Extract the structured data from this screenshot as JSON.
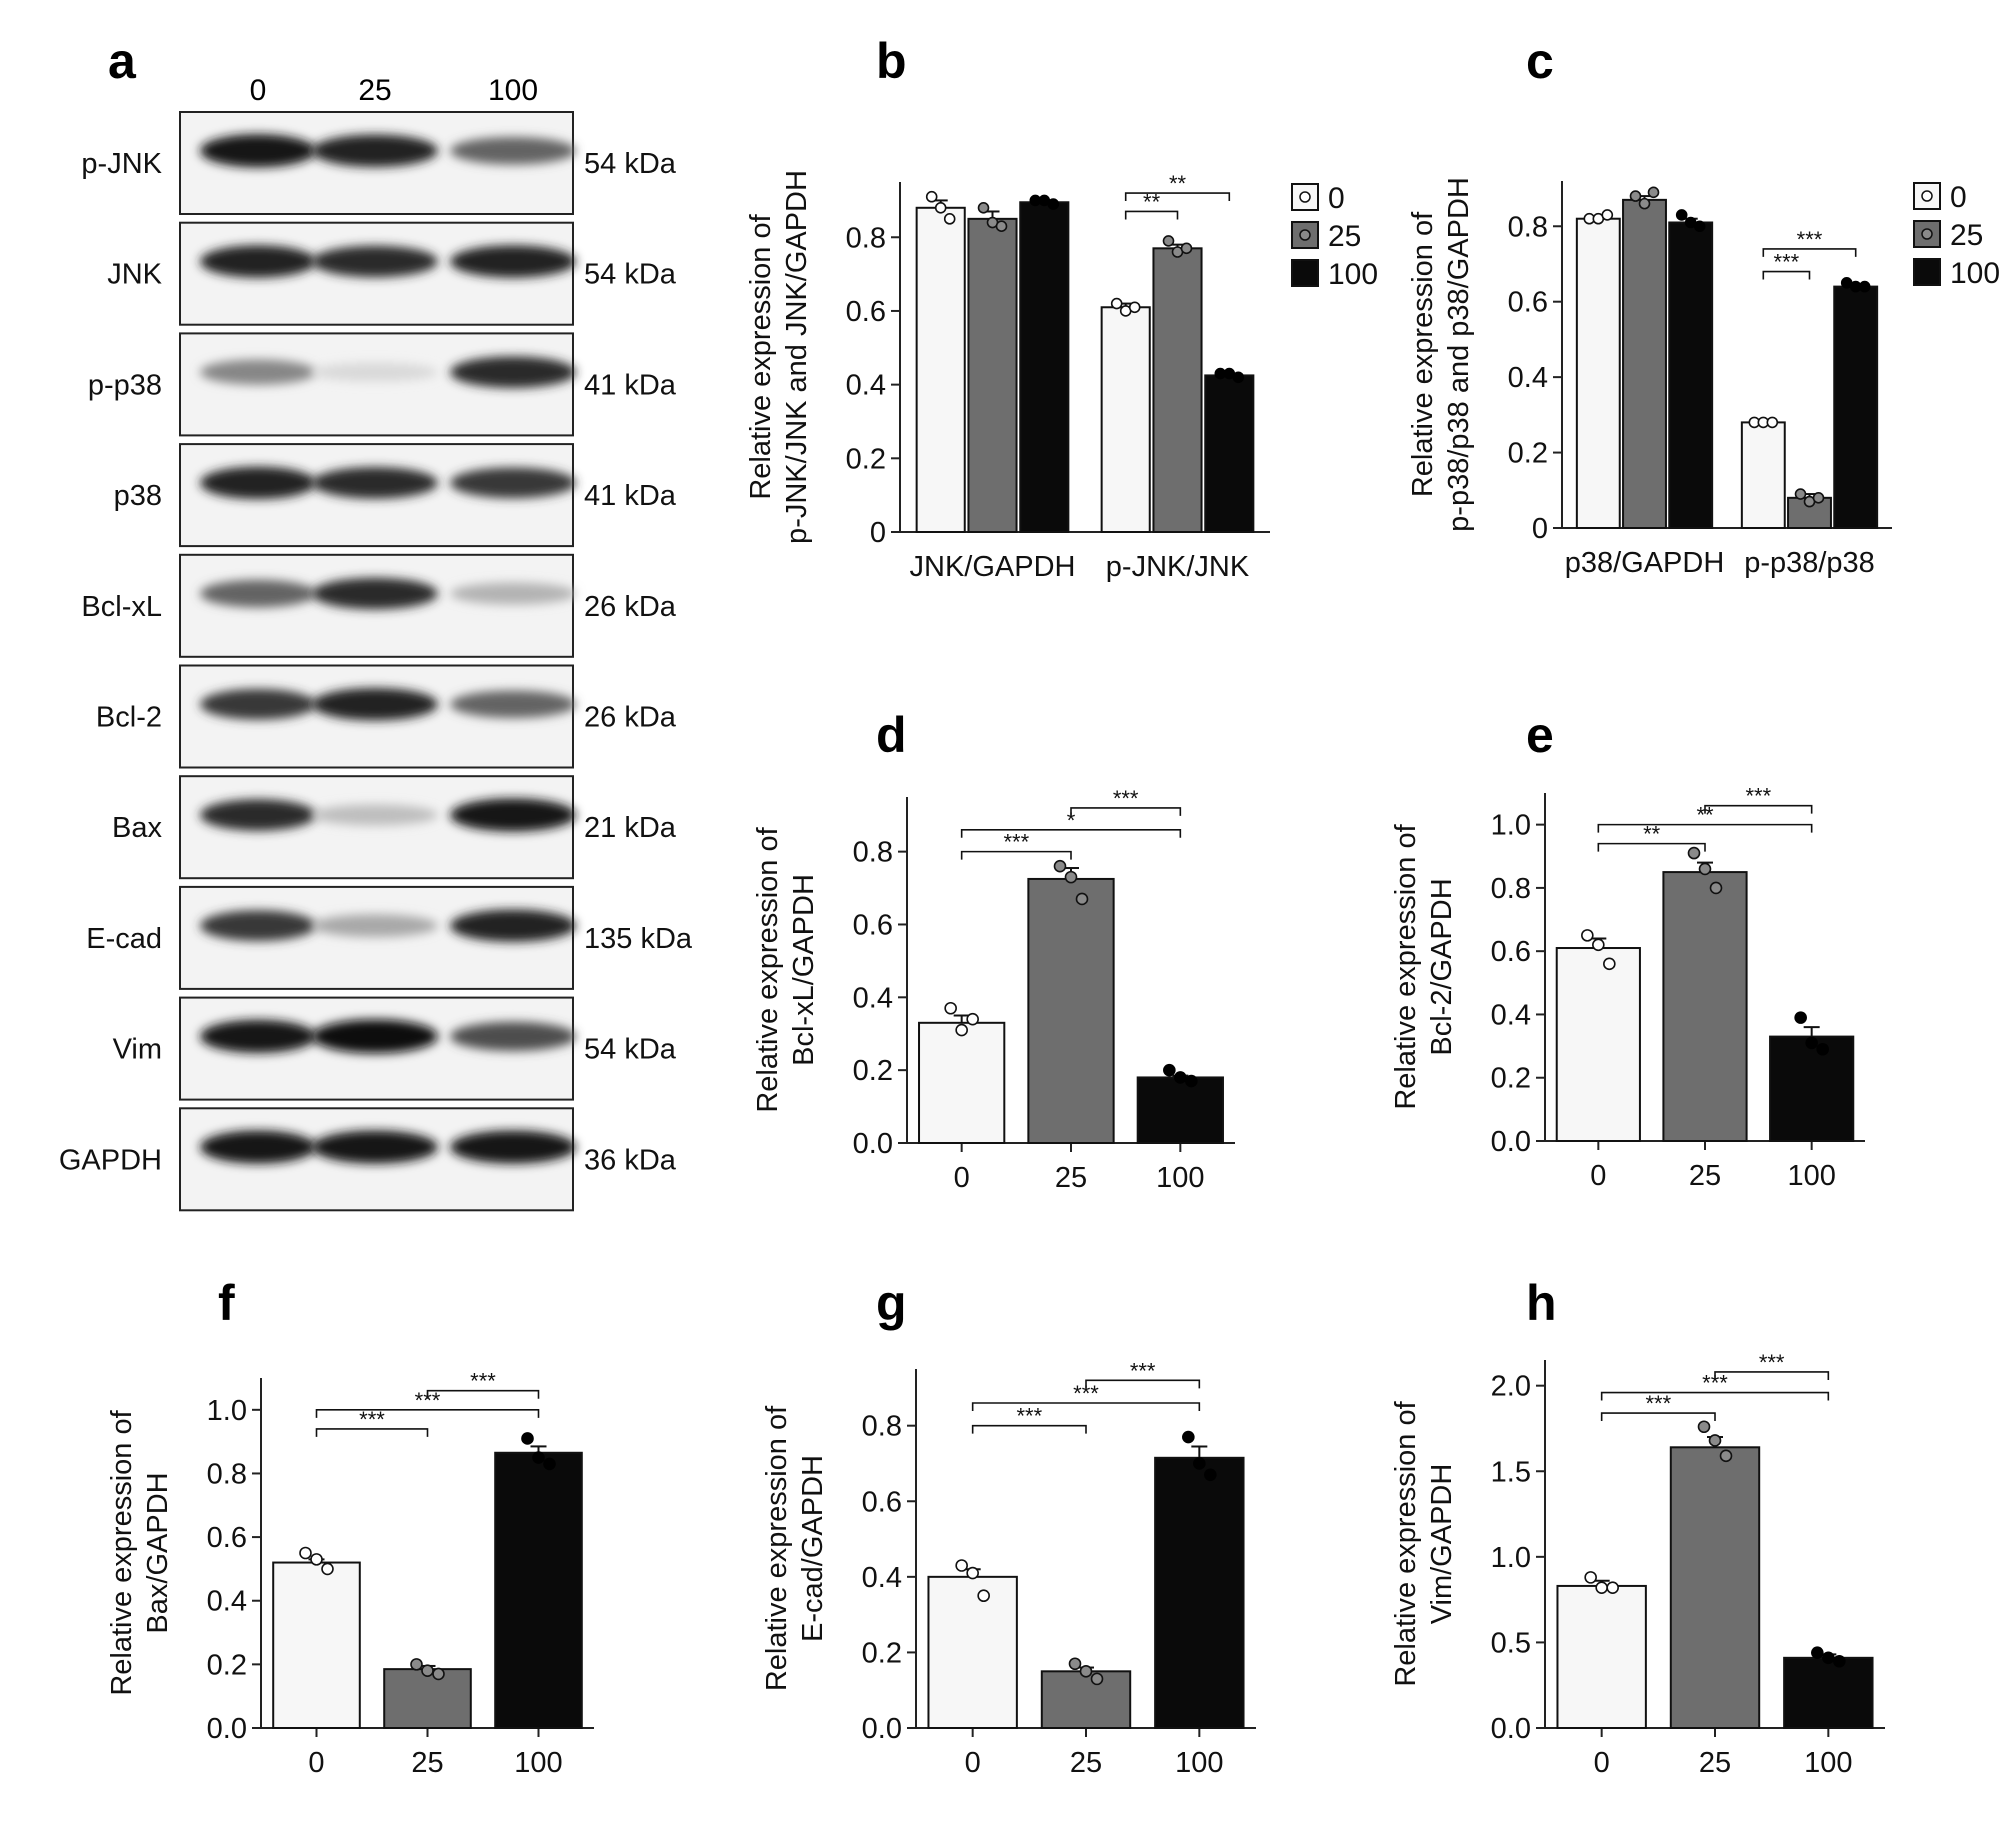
{
  "panel_letters": [
    "a",
    "b",
    "c",
    "d",
    "e",
    "f",
    "g",
    "h"
  ],
  "western_blot": {
    "lane_labels": [
      "0",
      "25",
      "100"
    ],
    "rows": [
      {
        "label": "p-JNK",
        "size": "54 kDa",
        "levels": [
          0.95,
          0.9,
          0.6
        ]
      },
      {
        "label": "JNK",
        "size": "54 kDa",
        "levels": [
          0.9,
          0.85,
          0.9
        ]
      },
      {
        "label": "p-p38",
        "size": "41 kDa",
        "levels": [
          0.45,
          0.08,
          0.85
        ]
      },
      {
        "label": "p38",
        "size": "41 kDa",
        "levels": [
          0.9,
          0.85,
          0.8
        ]
      },
      {
        "label": "Bcl-xL",
        "size": "26 kDa",
        "levels": [
          0.6,
          0.85,
          0.25
        ]
      },
      {
        "label": "Bcl-2",
        "size": "26 kDa",
        "levels": [
          0.8,
          0.9,
          0.6
        ]
      },
      {
        "label": "Bax",
        "size": "21 kDa",
        "levels": [
          0.85,
          0.2,
          0.95
        ]
      },
      {
        "label": "E-cad",
        "size": "135 kDa",
        "levels": [
          0.8,
          0.3,
          0.9
        ]
      },
      {
        "label": "Vim",
        "size": "54 kDa",
        "levels": [
          0.95,
          1.0,
          0.7
        ]
      },
      {
        "label": "GAPDH",
        "size": "36 kDa",
        "levels": [
          0.95,
          0.95,
          0.95
        ]
      }
    ]
  },
  "colors": {
    "dose_0": "#f7f7f7",
    "dose_25": "#6e6e6e",
    "dose_100": "#0a0a0a"
  },
  "chart_data": [
    {
      "panel": "b",
      "type": "bar",
      "ylabel": [
        "Relative expression of",
        "p-JNK/JNK and JNK/GAPDH"
      ],
      "categories": [
        "JNK/GAPDH",
        "p-JNK/JNK"
      ],
      "ylim": [
        0,
        0.95
      ],
      "yticks": [
        0,
        0.2,
        0.4,
        0.6,
        0.8
      ],
      "tick_labels": [
        "0",
        "0.2",
        "0.4",
        "0.6",
        "0.8"
      ],
      "legend": {
        "placement": "top-right",
        "entries": [
          "0",
          "25",
          "100"
        ]
      },
      "series": [
        {
          "name": "0",
          "values": [
            0.88,
            0.61
          ],
          "err": [
            0.02,
            0.01
          ],
          "points": [
            [
              0.91,
              0.88,
              0.85
            ],
            [
              0.62,
              0.6,
              0.61
            ]
          ]
        },
        {
          "name": "25",
          "values": [
            0.85,
            0.77
          ],
          "err": [
            0.02,
            0.01
          ],
          "points": [
            [
              0.88,
              0.84,
              0.83
            ],
            [
              0.79,
              0.76,
              0.77
            ]
          ]
        },
        {
          "name": "100",
          "values": [
            0.895,
            0.425
          ],
          "err": [
            0.005,
            0.004
          ],
          "points": [
            [
              0.9,
              0.9,
              0.89
            ],
            [
              0.43,
              0.43,
              0.42
            ]
          ]
        }
      ],
      "sig": [
        {
          "g": 1,
          "from": 0,
          "to": 1,
          "y": 0.87,
          "label": "**"
        },
        {
          "g": 1,
          "from": 0,
          "to": 2,
          "y": 0.92,
          "label": "**"
        }
      ]
    },
    {
      "panel": "c",
      "type": "bar",
      "ylabel": [
        "Relative expression of",
        "p-p38/p38 and p38/GAPDH"
      ],
      "categories": [
        "p38/GAPDH",
        "p-p38/p38"
      ],
      "ylim": [
        0,
        0.92
      ],
      "yticks": [
        0,
        0.2,
        0.4,
        0.6,
        0.8
      ],
      "tick_labels": [
        "0",
        "0.2",
        "0.4",
        "0.6",
        "0.8"
      ],
      "legend": {
        "placement": "top-right",
        "entries": [
          "0",
          "25",
          "100"
        ]
      },
      "series": [
        {
          "name": "0",
          "values": [
            0.82,
            0.28
          ],
          "err": [
            0.005,
            0.005
          ],
          "points": [
            [
              0.82,
              0.82,
              0.83
            ],
            [
              0.28,
              0.28,
              0.28
            ]
          ]
        },
        {
          "name": "25",
          "values": [
            0.87,
            0.08
          ],
          "err": [
            0.01,
            0.01
          ],
          "points": [
            [
              0.88,
              0.86,
              0.89
            ],
            [
              0.09,
              0.07,
              0.08
            ]
          ]
        },
        {
          "name": "100",
          "values": [
            0.81,
            0.64
          ],
          "err": [
            0.01,
            0.005
          ],
          "points": [
            [
              0.83,
              0.81,
              0.8
            ],
            [
              0.65,
              0.64,
              0.64
            ]
          ]
        }
      ],
      "sig": [
        {
          "g": 1,
          "from": 0,
          "to": 1,
          "y": 0.68,
          "label": "***"
        },
        {
          "g": 1,
          "from": 0,
          "to": 2,
          "y": 0.74,
          "label": "***"
        }
      ]
    },
    {
      "panel": "d",
      "type": "bar",
      "ylabel": [
        "Relative expression of",
        "Bcl-xL/GAPDH"
      ],
      "categories": [
        "0",
        "25",
        "100"
      ],
      "ylim": [
        0,
        0.95
      ],
      "yticks": [
        0,
        0.2,
        0.4,
        0.6,
        0.8
      ],
      "tick_labels": [
        "0.0",
        "0.2",
        "0.4",
        "0.6",
        "0.8"
      ],
      "values": [
        0.33,
        0.725,
        0.18
      ],
      "err": [
        0.02,
        0.03,
        0.005
      ],
      "points": [
        [
          0.37,
          0.31,
          0.34
        ],
        [
          0.76,
          0.73,
          0.67
        ],
        [
          0.2,
          0.18,
          0.17
        ]
      ],
      "sig": [
        {
          "from": 0,
          "to": 1,
          "y": 0.8,
          "label": "***"
        },
        {
          "from": 0,
          "to": 2,
          "y": 0.86,
          "label": "*"
        },
        {
          "from": 1,
          "to": 2,
          "y": 0.92,
          "label": "***"
        }
      ]
    },
    {
      "panel": "e",
      "type": "bar",
      "ylabel": [
        "Relative expression of",
        "Bcl-2/GAPDH"
      ],
      "categories": [
        "0",
        "25",
        "100"
      ],
      "ylim": [
        0,
        1.1
      ],
      "yticks": [
        0,
        0.2,
        0.4,
        0.6,
        0.8,
        1.0
      ],
      "tick_labels": [
        "0.0",
        "0.2",
        "0.4",
        "0.6",
        "0.8",
        "1.0"
      ],
      "values": [
        0.61,
        0.85,
        0.33
      ],
      "err": [
        0.03,
        0.03,
        0.03
      ],
      "points": [
        [
          0.65,
          0.62,
          0.56
        ],
        [
          0.91,
          0.86,
          0.8
        ],
        [
          0.39,
          0.31,
          0.29
        ]
      ],
      "sig": [
        {
          "from": 0,
          "to": 1,
          "y": 0.94,
          "label": "**"
        },
        {
          "from": 0,
          "to": 2,
          "y": 1.0,
          "label": "**"
        },
        {
          "from": 1,
          "to": 2,
          "y": 1.06,
          "label": "***"
        }
      ]
    },
    {
      "panel": "f",
      "type": "bar",
      "ylabel": [
        "Relative expression of",
        "Bax/GAPDH"
      ],
      "categories": [
        "0",
        "25",
        "100"
      ],
      "ylim": [
        0,
        1.1
      ],
      "yticks": [
        0,
        0.2,
        0.4,
        0.6,
        0.8,
        1.0
      ],
      "tick_labels": [
        "0.0",
        "0.2",
        "0.4",
        "0.6",
        "0.8",
        "1.0"
      ],
      "values": [
        0.52,
        0.185,
        0.865
      ],
      "err": [
        0.01,
        0.01,
        0.02
      ],
      "points": [
        [
          0.55,
          0.53,
          0.5
        ],
        [
          0.2,
          0.18,
          0.17
        ],
        [
          0.91,
          0.85,
          0.83
        ]
      ],
      "sig": [
        {
          "from": 0,
          "to": 1,
          "y": 0.94,
          "label": "***"
        },
        {
          "from": 0,
          "to": 2,
          "y": 1.0,
          "label": "***"
        },
        {
          "from": 1,
          "to": 2,
          "y": 1.06,
          "label": "***"
        }
      ]
    },
    {
      "panel": "g",
      "type": "bar",
      "ylabel": [
        "Relative expression of",
        "E-cad/GAPDH"
      ],
      "categories": [
        "0",
        "25",
        "100"
      ],
      "ylim": [
        0,
        0.95
      ],
      "yticks": [
        0,
        0.2,
        0.4,
        0.6,
        0.8
      ],
      "tick_labels": [
        "0.0",
        "0.2",
        "0.4",
        "0.6",
        "0.8"
      ],
      "values": [
        0.4,
        0.15,
        0.715
      ],
      "err": [
        0.02,
        0.01,
        0.03
      ],
      "points": [
        [
          0.43,
          0.41,
          0.35
        ],
        [
          0.17,
          0.15,
          0.13
        ],
        [
          0.77,
          0.7,
          0.67
        ]
      ],
      "sig": [
        {
          "from": 0,
          "to": 1,
          "y": 0.8,
          "label": "***"
        },
        {
          "from": 0,
          "to": 2,
          "y": 0.86,
          "label": "***"
        },
        {
          "from": 1,
          "to": 2,
          "y": 0.92,
          "label": "***"
        }
      ]
    },
    {
      "panel": "h",
      "type": "bar",
      "ylabel": [
        "Relative expression of",
        "Vim/GAPDH"
      ],
      "categories": [
        "0",
        "25",
        "100"
      ],
      "ylim": [
        0,
        2.15
      ],
      "yticks": [
        0,
        0.5,
        1.0,
        1.5,
        2.0
      ],
      "tick_labels": [
        "0.0",
        "0.5",
        "1.0",
        "1.5",
        "2.0"
      ],
      "values": [
        0.83,
        1.64,
        0.41
      ],
      "err": [
        0.03,
        0.06,
        0.02
      ],
      "points": [
        [
          0.88,
          0.82,
          0.82
        ],
        [
          1.76,
          1.68,
          1.59
        ],
        [
          0.44,
          0.41,
          0.39
        ]
      ],
      "sig": [
        {
          "from": 0,
          "to": 1,
          "y": 1.84,
          "label": "***"
        },
        {
          "from": 0,
          "to": 2,
          "y": 1.96,
          "label": "***"
        },
        {
          "from": 1,
          "to": 2,
          "y": 2.08,
          "label": "***"
        }
      ]
    }
  ]
}
